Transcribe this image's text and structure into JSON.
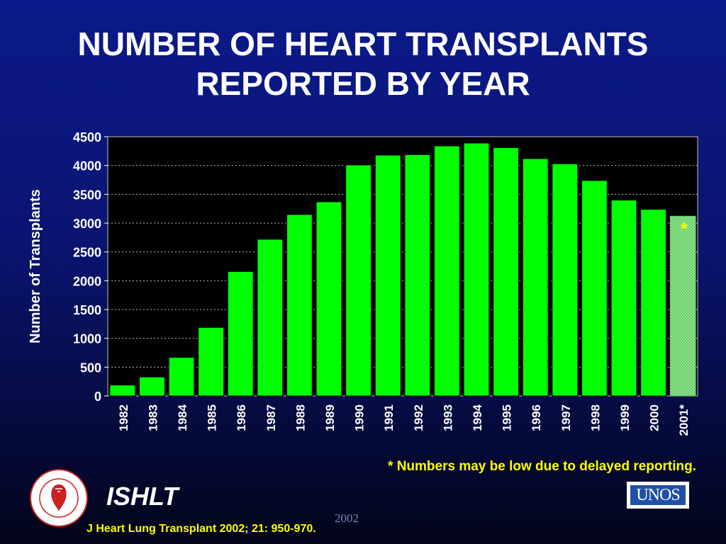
{
  "title": {
    "line1": "NUMBER OF HEART TRANSPLANTS",
    "line2": "REPORTED BY YEAR"
  },
  "chart_data": {
    "type": "bar",
    "title": "NUMBER OF HEART TRANSPLANTS REPORTED BY YEAR",
    "xlabel": "",
    "ylabel": "Number of Transplants",
    "categories": [
      "1982",
      "1983",
      "1984",
      "1985",
      "1986",
      "1987",
      "1988",
      "1989",
      "1990",
      "1991",
      "1992",
      "1993",
      "1994",
      "1995",
      "1996",
      "1997",
      "1998",
      "1999",
      "2000",
      "2001*"
    ],
    "values": [
      190,
      330,
      670,
      1190,
      2160,
      2720,
      3150,
      3370,
      4010,
      4180,
      4190,
      4340,
      4390,
      4310,
      4120,
      4030,
      3740,
      3400,
      3240,
      3120
    ],
    "ylim": [
      0,
      4500
    ],
    "yticks": [
      "0",
      "500",
      "1000",
      "1500",
      "2000",
      "2500",
      "3000",
      "3500",
      "4000",
      "4500"
    ],
    "grid": true,
    "bar_color": "#00ff00",
    "plot_background": "#000000",
    "highlight_bar_index": 19,
    "highlight_bar_color": "#88dd88",
    "annotation": "*",
    "annotation_color": "#ffff00"
  },
  "footnote": "* Numbers may be low due to delayed reporting.",
  "org": "ISHLT",
  "citation": "J Heart Lung Transplant 2002; 21: 950-970.",
  "year_watermark": "2002",
  "logos": {
    "seal_text": "INTERNATIONAL SOCIETY FOR HEART & LUNG TRANSPLANTATION",
    "unos": "UNOS"
  },
  "colors": {
    "background_top": "#0b1a8a",
    "background_bottom": "#020418",
    "title": "#ffffff",
    "footnote": "#ffff00",
    "citation": "#ffff00"
  }
}
